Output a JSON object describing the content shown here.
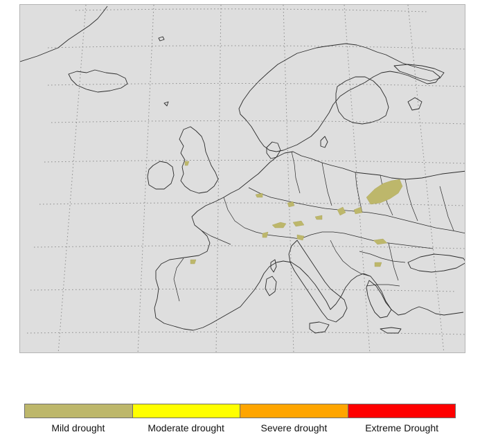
{
  "map": {
    "background_color": "#dedede",
    "coastline_color": "#2a2a2a",
    "graticule": "dotted",
    "drought_fill_color": "#bdb76b"
  },
  "legend": {
    "items": [
      {
        "label": "Mild drought",
        "color": "#bdb76b"
      },
      {
        "label": "Moderate drought",
        "color": "#ffff00"
      },
      {
        "label": "Severe drought",
        "color": "#ffa500"
      },
      {
        "label": "Extreme Drought",
        "color": "#ff0000"
      }
    ]
  }
}
